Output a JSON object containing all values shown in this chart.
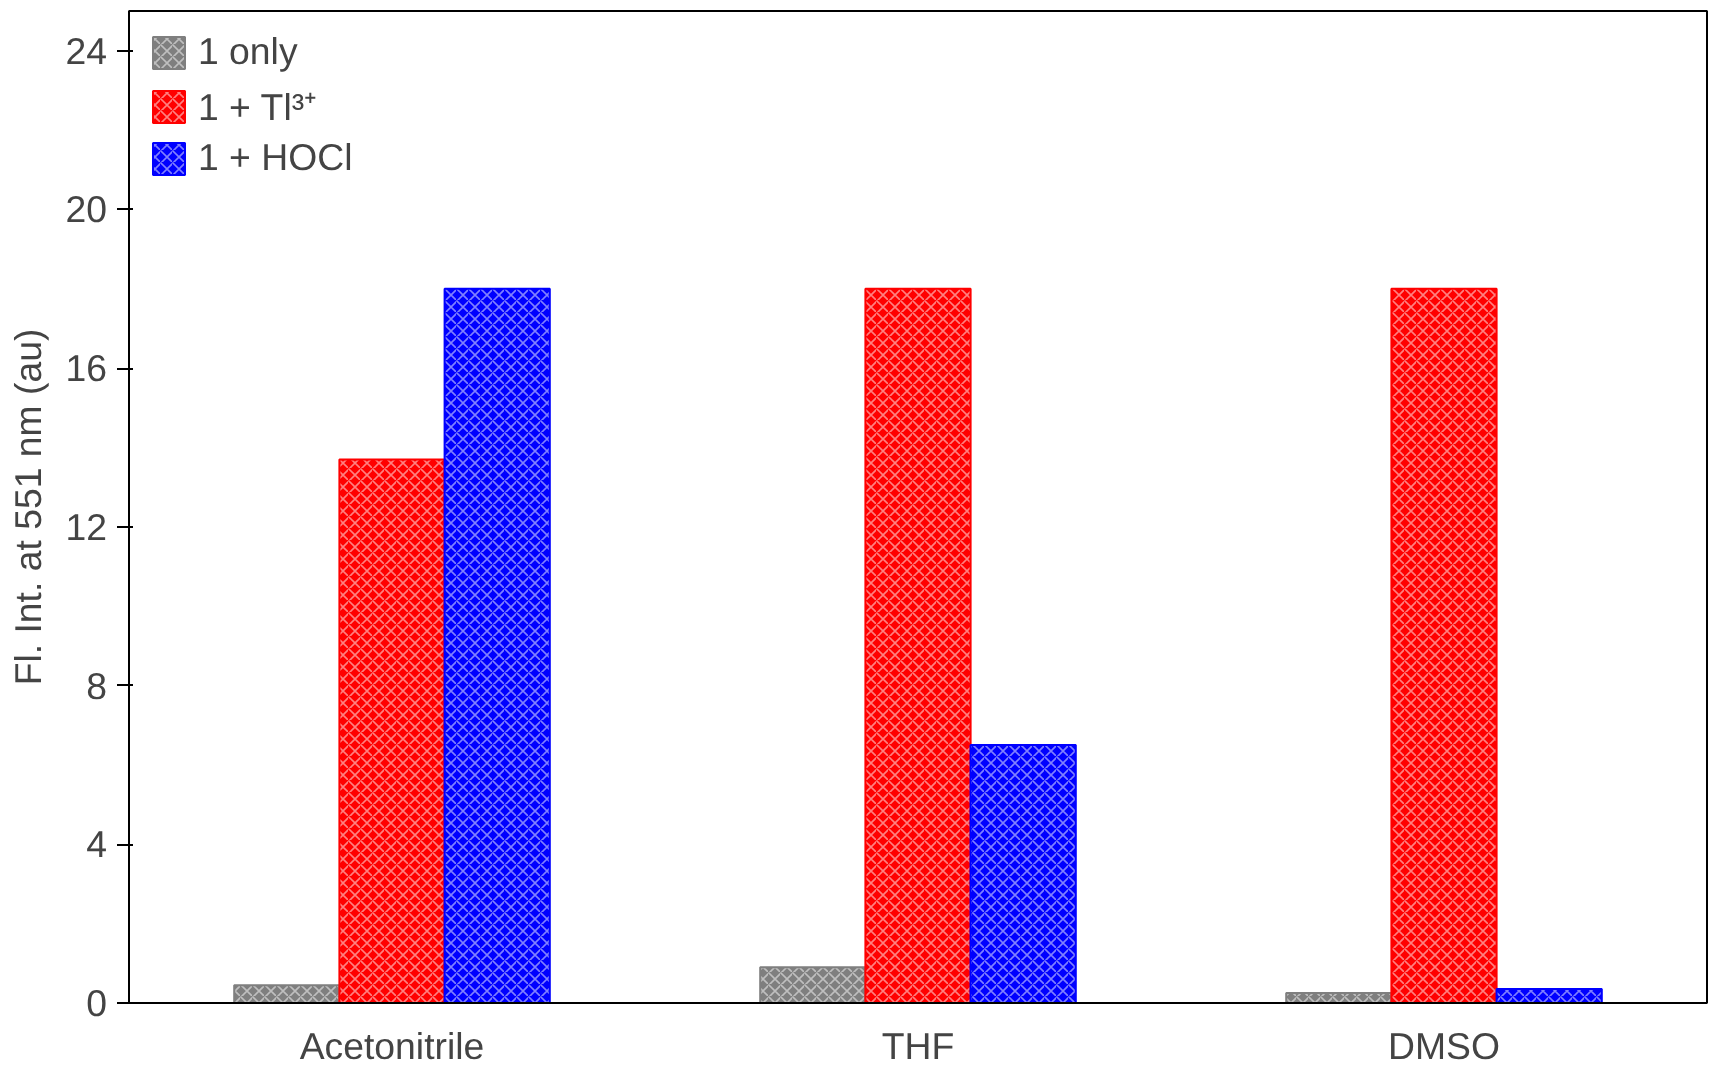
{
  "chart_data": {
    "type": "bar",
    "ylabel": "Fl. Int. at 551 nm (au)",
    "categories": [
      "Acetonitrile",
      "THF",
      "DMSO"
    ],
    "series": [
      {
        "name": "1 only",
        "color": "#7f7f7f",
        "values": [
          0.45,
          0.9,
          0.25
        ]
      },
      {
        "name": "1 + Tl³⁺",
        "color": "#ff0000",
        "values": [
          13.7,
          18,
          18
        ]
      },
      {
        "name": "1 + HOCl",
        "color": "#0000ff",
        "values": [
          18,
          6.5,
          0.35
        ]
      }
    ],
    "ylim": [
      0,
      25
    ],
    "yticks": [
      0,
      4,
      8,
      12,
      16,
      20,
      24
    ],
    "grid": false,
    "legend": "top left"
  }
}
